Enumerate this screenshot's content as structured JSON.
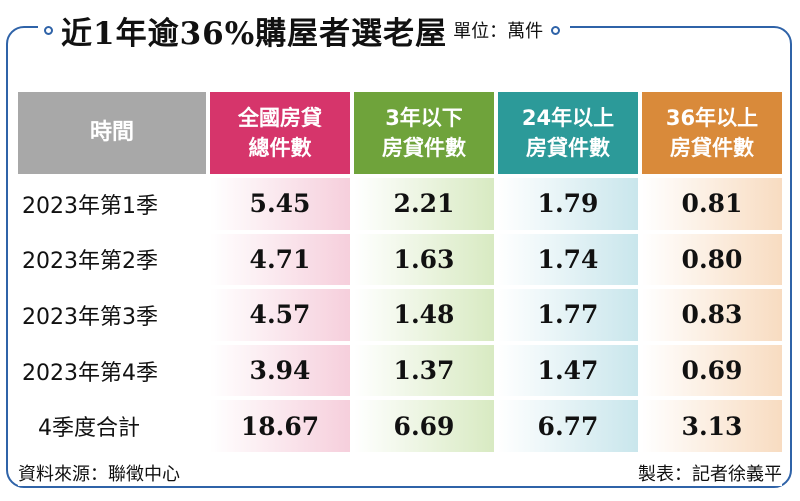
{
  "header": {
    "title": "近1年逾36%購屋者選老屋",
    "unit": "單位：萬件"
  },
  "colors": {
    "frame": "#2f63a8",
    "time_header": "#a8a8a8",
    "total_header": "#d6356b",
    "under3_header": "#6fa33b",
    "over24_header": "#2c9a99",
    "over36_header": "#d98a3a"
  },
  "chart_data": {
    "type": "table",
    "columns": [
      {
        "line1": "時間",
        "line2": ""
      },
      {
        "line1": "全國房貸",
        "line2": "總件數"
      },
      {
        "line1": "3年以下",
        "line2": "房貸件數"
      },
      {
        "line1": "24年以上",
        "line2": "房貸件數"
      },
      {
        "line1": "36年以上",
        "line2": "房貸件數"
      }
    ],
    "rows": [
      {
        "label": "2023年第1季",
        "values": [
          "5.45",
          "2.21",
          "1.79",
          "0.81"
        ]
      },
      {
        "label": "2023年第2季",
        "values": [
          "4.71",
          "1.63",
          "1.74",
          "0.80"
        ]
      },
      {
        "label": "2023年第3季",
        "values": [
          "4.57",
          "1.48",
          "1.77",
          "0.83"
        ]
      },
      {
        "label": "2023年第4季",
        "values": [
          "3.94",
          "1.37",
          "1.47",
          "0.69"
        ]
      },
      {
        "label": "4季度合計",
        "values": [
          "18.67",
          "6.69",
          "6.77",
          "3.13"
        ]
      }
    ]
  },
  "footer": {
    "source": "資料來源：聯徵中心",
    "credit": "製表：記者徐義平"
  }
}
